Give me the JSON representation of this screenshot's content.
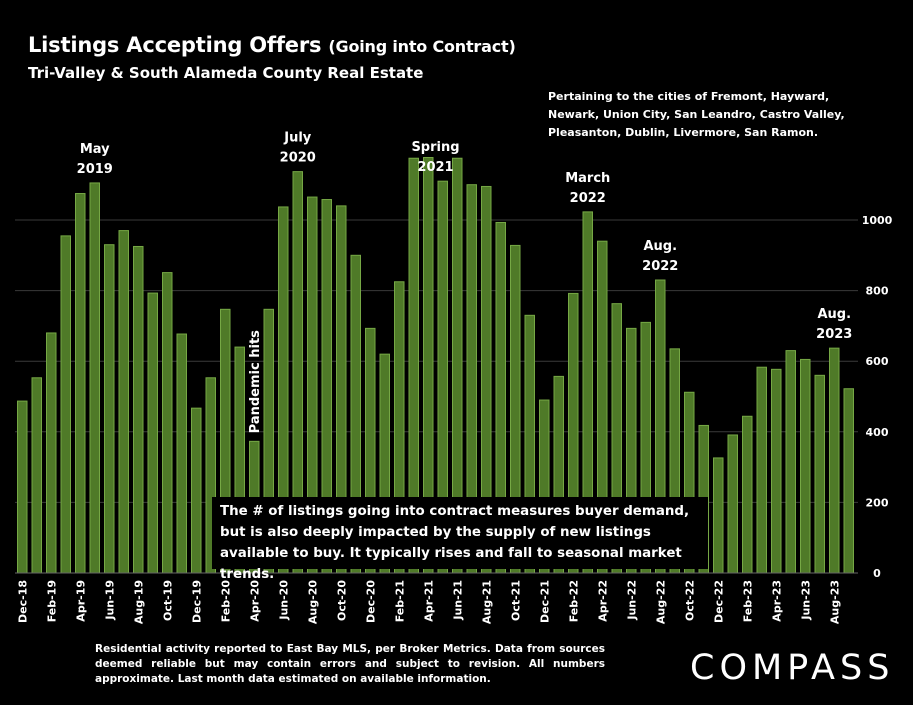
{
  "header": {
    "title": "Listings Accepting Offers",
    "title_suffix": "(Going into Contract)",
    "subtitle": "Tri-Valley & South Alameda County Real Estate"
  },
  "cities_note": "Pertaining to the cities of Fremont, Hayward, Newark, Union City, San Leandro, Castro Valley, Pleasanton, Dublin, Livermore, San Ramon.",
  "callout": "The # of listings going into contract measures buyer demand, but is also deeply impacted by the supply of new listings available to buy. It typically rises and fall to seasonal market trends.",
  "footnote": "Residential activity reported to East Bay MLS, per Broker Metrics. Data from sources deemed reliable but may contain errors and subject to revision.  All numbers approximate. Last month data estimated on available information.",
  "logo": "COMPASS",
  "colors": {
    "background": "#000000",
    "bar_fill": "#4f7a28",
    "bar_stroke": "#76a845",
    "grid": "#3a3a3a",
    "text": "#ffffff"
  },
  "chart_data": {
    "type": "bar",
    "title": "Listings Accepting Offers (Going into Contract)",
    "subtitle": "Tri-Valley & South Alameda County Real Estate",
    "categories": [
      "Dec-18",
      "Jan-19",
      "Feb-19",
      "Mar-19",
      "Apr-19",
      "May-19",
      "Jun-19",
      "Jul-19",
      "Aug-19",
      "Sep-19",
      "Oct-19",
      "Nov-19",
      "Dec-19",
      "Jan-20",
      "Feb-20",
      "Mar-20",
      "Apr-20",
      "May-20",
      "Jun-20",
      "Jul-20",
      "Aug-20",
      "Sep-20",
      "Oct-20",
      "Nov-20",
      "Dec-20",
      "Jan-21",
      "Feb-21",
      "Mar-21",
      "Apr-21",
      "May-21",
      "Jun-21",
      "Jul-21",
      "Aug-21",
      "Sep-21",
      "Oct-21",
      "Nov-21",
      "Dec-21",
      "Jan-22",
      "Feb-22",
      "Mar-22",
      "Apr-22",
      "May-22",
      "Jun-22",
      "Jul-22",
      "Aug-22",
      "Sep-22",
      "Oct-22",
      "Nov-22",
      "Dec-22",
      "Jan-23",
      "Feb-23",
      "Mar-23",
      "Apr-23",
      "May-23",
      "Jun-23",
      "Jul-23",
      "Aug-23",
      "Sep-23"
    ],
    "values": [
      487,
      553,
      680,
      955,
      1075,
      1105,
      930,
      970,
      925,
      793,
      851,
      677,
      467,
      553,
      747,
      640,
      373,
      747,
      1037,
      1137,
      1065,
      1058,
      1040,
      900,
      693,
      620,
      825,
      1175,
      1177,
      1110,
      1175,
      1100,
      1095,
      993,
      928,
      730,
      490,
      557,
      792,
      1023,
      940,
      763,
      693,
      710,
      830,
      635,
      512,
      418,
      326,
      391,
      444,
      583,
      577,
      630,
      605,
      560,
      637,
      522
    ],
    "tick_labels": [
      "Dec-18",
      "Feb-19",
      "Apr-19",
      "Jun-19",
      "Aug-19",
      "Oct-19",
      "Dec-19",
      "Feb-20",
      "Apr-20",
      "Jun-20",
      "Aug-20",
      "Oct-20",
      "Dec-20",
      "Feb-21",
      "Apr-21",
      "Jun-21",
      "Aug-21",
      "Oct-21",
      "Dec-21",
      "Feb-22",
      "Apr-22",
      "Jun-22",
      "Aug-22",
      "Oct-22",
      "Dec-22",
      "Feb-23",
      "Apr-23",
      "Jun-23",
      "Aug-23"
    ],
    "y_ticks": [
      "0",
      "200",
      "400",
      "600",
      "800",
      "1000"
    ],
    "ylim": [
      0,
      1200
    ],
    "y_axis_side": "right",
    "grid": true,
    "annotations": [
      {
        "lines": [
          "May",
          "2019"
        ],
        "index": 5,
        "rotated": false
      },
      {
        "lines": [
          "Pandemic hits"
        ],
        "index": 16,
        "rotated": true
      },
      {
        "lines": [
          "July",
          "2020"
        ],
        "index": 19,
        "rotated": false
      },
      {
        "lines": [
          "Spring",
          "2021"
        ],
        "index": 28.5,
        "rotated": false
      },
      {
        "lines": [
          "March",
          "2022"
        ],
        "index": 39,
        "rotated": false
      },
      {
        "lines": [
          "Aug.",
          "2022"
        ],
        "index": 44,
        "rotated": false
      },
      {
        "lines": [
          "Aug.",
          "2023"
        ],
        "index": 56,
        "rotated": false
      }
    ]
  }
}
